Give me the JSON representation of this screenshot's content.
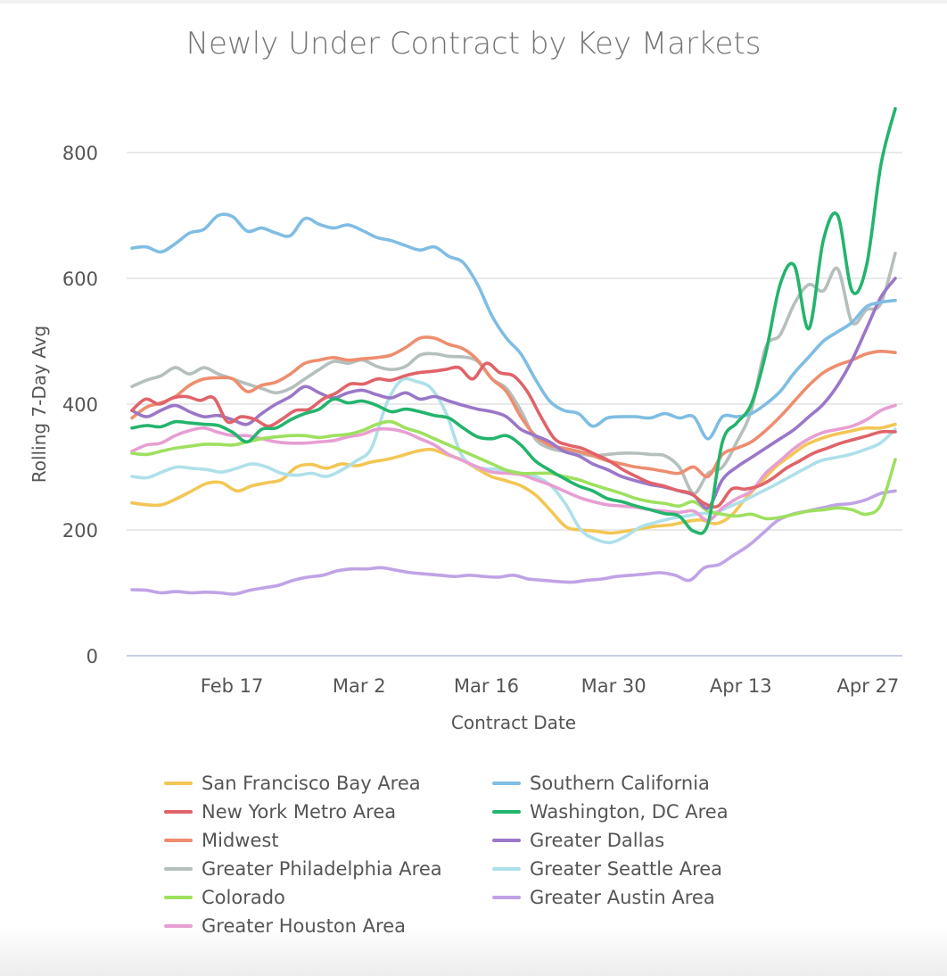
{
  "chart_data": {
    "type": "line",
    "title": "Newly Under Contract by Key Markets",
    "xlabel": "Contract Date",
    "ylabel": "Rolling 7-Day Avg",
    "ylim": [
      0,
      800
    ],
    "yticks": [
      0,
      200,
      400,
      600,
      800
    ],
    "grid": true,
    "legend_position": "bottom",
    "x_range": [
      "Feb 6",
      "Apr 30"
    ],
    "xtick_labels": [
      "Feb 17",
      "Mar 2",
      "Mar 16",
      "Mar 30",
      "Apr 13",
      "Apr 27"
    ],
    "xtick_day_index": [
      11,
      25,
      39,
      53,
      67,
      81
    ],
    "x_day_step": 2,
    "series": [
      {
        "name": "San Francisco Bay Area",
        "color": "#f3c654",
        "values": [
          243,
          240,
          240,
          250,
          262,
          274,
          275,
          262,
          270,
          275,
          280,
          300,
          304,
          298,
          305,
          302,
          308,
          312,
          318,
          325,
          328,
          320,
          312,
          298,
          285,
          278,
          270,
          255,
          230,
          205,
          200,
          198,
          195,
          198,
          202,
          206,
          208,
          213,
          216,
          210,
          222,
          250,
          275,
          300,
          318,
          335,
          345,
          352,
          357,
          362,
          362,
          368
        ]
      },
      {
        "name": "New York Metro Area",
        "color": "#e06369",
        "values": [
          390,
          408,
          400,
          410,
          412,
          406,
          410,
          372,
          380,
          376,
          365,
          376,
          390,
          392,
          408,
          418,
          432,
          432,
          440,
          438,
          445,
          450,
          452,
          455,
          458,
          440,
          465,
          450,
          445,
          420,
          380,
          345,
          335,
          330,
          320,
          310,
          296,
          285,
          275,
          270,
          263,
          258,
          242,
          238,
          265,
          265,
          270,
          282,
          298,
          310,
          322,
          330,
          338,
          344,
          350,
          356,
          356
        ]
      },
      {
        "name": "Midwest",
        "color": "#ee8d6f",
        "values": [
          378,
          395,
          402,
          412,
          430,
          440,
          442,
          440,
          420,
          430,
          435,
          448,
          465,
          470,
          474,
          470,
          472,
          474,
          478,
          490,
          505,
          505,
          495,
          488,
          470,
          440,
          420,
          380,
          350,
          335,
          330,
          325,
          318,
          310,
          305,
          300,
          297,
          293,
          290,
          300,
          285,
          320,
          330,
          340,
          358,
          380,
          405,
          430,
          450,
          462,
          470,
          480,
          484,
          482
        ]
      },
      {
        "name": "Greater Philadelphia Area",
        "color": "#b5bfbc",
        "values": [
          428,
          438,
          445,
          458,
          448,
          458,
          448,
          440,
          432,
          425,
          418,
          425,
          440,
          455,
          468,
          465,
          470,
          460,
          455,
          460,
          478,
          480,
          476,
          475,
          468,
          440,
          425,
          390,
          345,
          330,
          325,
          322,
          318,
          320,
          322,
          322,
          320,
          318,
          300,
          258,
          290,
          300,
          340,
          390,
          490,
          510,
          560,
          590,
          580,
          615,
          530,
          550,
          560,
          640
        ]
      },
      {
        "name": "Colorado",
        "color": "#9ee05f",
        "values": [
          322,
          320,
          325,
          330,
          333,
          336,
          336,
          335,
          340,
          345,
          348,
          350,
          350,
          347,
          350,
          352,
          358,
          368,
          372,
          362,
          355,
          345,
          335,
          325,
          315,
          305,
          295,
          290,
          290,
          290,
          285,
          280,
          272,
          265,
          258,
          250,
          245,
          242,
          238,
          245,
          230,
          225,
          222,
          225,
          218,
          220,
          225,
          230,
          232,
          235,
          232,
          225,
          240,
          312
        ]
      },
      {
        "name": "Greater Houston Area",
        "color": "#e79ed2",
        "values": [
          325,
          335,
          338,
          350,
          358,
          362,
          355,
          350,
          350,
          345,
          340,
          338,
          338,
          340,
          342,
          348,
          352,
          360,
          360,
          355,
          345,
          335,
          320,
          310,
          300,
          292,
          290,
          288,
          280,
          272,
          262,
          252,
          245,
          240,
          238,
          236,
          232,
          230,
          228,
          230,
          215,
          235,
          250,
          262,
          290,
          310,
          330,
          345,
          355,
          360,
          365,
          375,
          390,
          398
        ]
      },
      {
        "name": "Southern California",
        "color": "#7fbde3",
        "values": [
          648,
          650,
          642,
          655,
          672,
          678,
          700,
          698,
          675,
          680,
          672,
          668,
          695,
          686,
          680,
          685,
          676,
          665,
          660,
          652,
          645,
          650,
          635,
          625,
          590,
          540,
          505,
          480,
          440,
          405,
          390,
          385,
          365,
          378,
          380,
          380,
          378,
          385,
          378,
          380,
          345,
          380,
          380,
          385,
          400,
          420,
          450,
          475,
          500,
          515,
          530,
          555,
          562,
          565
        ]
      },
      {
        "name": "Washington, DC Area",
        "color": "#24b46c",
        "values": [
          362,
          366,
          364,
          372,
          370,
          368,
          366,
          355,
          340,
          360,
          362,
          375,
          385,
          392,
          408,
          402,
          405,
          398,
          388,
          392,
          388,
          382,
          378,
          362,
          348,
          345,
          350,
          335,
          310,
          295,
          282,
          270,
          262,
          250,
          245,
          238,
          232,
          226,
          222,
          198,
          210,
          340,
          370,
          400,
          480,
          590,
          620,
          520,
          660,
          700,
          580,
          620,
          780,
          870
        ]
      },
      {
        "name": "Greater Dallas",
        "color": "#9a77c8",
        "values": [
          390,
          380,
          390,
          398,
          388,
          380,
          382,
          375,
          368,
          385,
          400,
          412,
          428,
          418,
          410,
          418,
          422,
          415,
          410,
          418,
          408,
          412,
          405,
          398,
          392,
          388,
          380,
          360,
          350,
          340,
          325,
          318,
          305,
          296,
          285,
          278,
          272,
          268,
          262,
          255,
          235,
          280,
          300,
          315,
          330,
          345,
          360,
          380,
          400,
          430,
          470,
          520,
          570,
          600
        ]
      },
      {
        "name": "Greater Seattle Area",
        "color": "#aee0ea",
        "values": [
          285,
          283,
          292,
          300,
          298,
          296,
          292,
          298,
          305,
          300,
          290,
          287,
          290,
          285,
          295,
          310,
          330,
          400,
          438,
          436,
          425,
          385,
          320,
          300,
          297,
          295,
          290,
          285,
          270,
          240,
          200,
          185,
          180,
          190,
          205,
          212,
          218,
          222,
          226,
          228,
          238,
          248,
          260,
          272,
          285,
          298,
          310,
          315,
          320,
          328,
          338,
          360
        ]
      },
      {
        "name": "Greater Austin Area",
        "color": "#c0a3e6",
        "values": [
          105,
          104,
          100,
          102,
          100,
          101,
          100,
          98,
          104,
          108,
          112,
          120,
          125,
          128,
          135,
          138,
          138,
          140,
          136,
          132,
          130,
          128,
          126,
          128,
          126,
          125,
          128,
          122,
          120,
          118,
          117,
          120,
          122,
          126,
          128,
          130,
          132,
          128,
          120,
          140,
          145,
          160,
          175,
          195,
          215,
          225,
          230,
          235,
          240,
          242,
          248,
          258,
          262
        ]
      }
    ]
  }
}
